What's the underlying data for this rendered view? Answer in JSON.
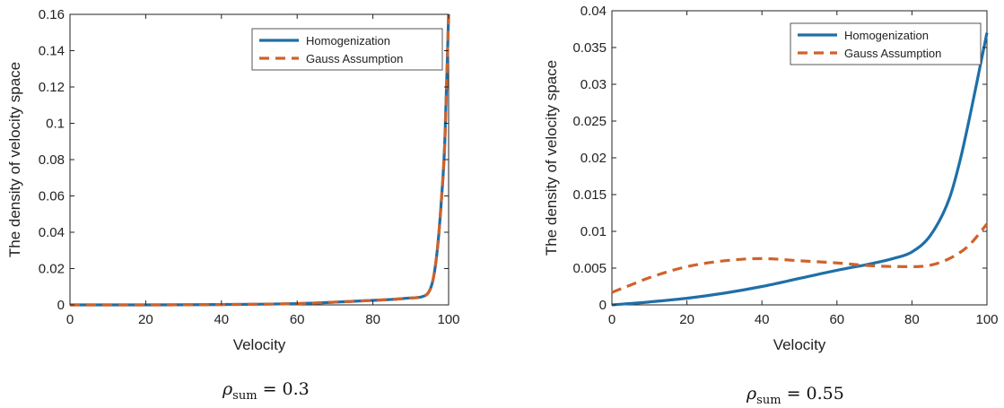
{
  "colors": {
    "homogenization": "#1f6fa8",
    "gauss": "#d0622b",
    "axis": "#222222",
    "legend_border": "#555555"
  },
  "chart_data": [
    {
      "type": "line",
      "xlabel": "Velocity",
      "ylabel": "The density of velocity space",
      "xlim": [
        0,
        100
      ],
      "ylim": [
        0,
        0.16
      ],
      "xticks": [
        0,
        20,
        40,
        60,
        80,
        100
      ],
      "yticks": [
        0,
        0.02,
        0.04,
        0.06,
        0.08,
        0.1,
        0.12,
        0.14,
        0.16
      ],
      "ytick_labels": [
        "0",
        "0.02",
        "0.04",
        "0.06",
        "0.08",
        "0.1",
        "0.12",
        "0.14",
        "0.16"
      ],
      "grid": false,
      "legend": "top-right",
      "caption": {
        "symbol": "ρ",
        "sub": "sum",
        "rest": " = 0.3"
      },
      "series": [
        {
          "name": "Homogenization",
          "style": "solid",
          "x": [
            0,
            20,
            40,
            60,
            70,
            80,
            85,
            90,
            93,
            95,
            96,
            97,
            98,
            99,
            100
          ],
          "y": [
            0,
            0,
            0.0002,
            0.0007,
            0.0015,
            0.0025,
            0.003,
            0.0038,
            0.0045,
            0.008,
            0.015,
            0.03,
            0.055,
            0.09,
            0.16
          ]
        },
        {
          "name": "Gauss Assumption",
          "style": "dashed",
          "x": [
            0,
            20,
            40,
            60,
            70,
            80,
            85,
            90,
            93,
            95,
            96,
            97,
            98,
            99,
            100
          ],
          "y": [
            0,
            0,
            0.0002,
            0.0007,
            0.0015,
            0.0025,
            0.003,
            0.0038,
            0.0045,
            0.008,
            0.015,
            0.03,
            0.055,
            0.09,
            0.16
          ]
        }
      ]
    },
    {
      "type": "line",
      "xlabel": "Velocity",
      "ylabel": "The density of velocity space",
      "xlim": [
        0,
        100
      ],
      "ylim": [
        0,
        0.04
      ],
      "xticks": [
        0,
        20,
        40,
        60,
        80,
        100
      ],
      "yticks": [
        0,
        0.005,
        0.01,
        0.015,
        0.02,
        0.025,
        0.03,
        0.035,
        0.04
      ],
      "ytick_labels": [
        "0",
        "0.005",
        "0.01",
        "0.015",
        "0.02",
        "0.025",
        "0.03",
        "0.035",
        "0.04"
      ],
      "grid": false,
      "legend": "top-right",
      "caption": {
        "symbol": "ρ",
        "sub": "sum",
        "rest": " = 0.55"
      },
      "series": [
        {
          "name": "Homogenization",
          "style": "solid",
          "x": [
            0,
            10,
            20,
            30,
            40,
            50,
            60,
            70,
            75,
            80,
            85,
            90,
            93,
            96,
            98,
            100
          ],
          "y": [
            0,
            0.0004,
            0.0009,
            0.0016,
            0.0025,
            0.0036,
            0.0047,
            0.0057,
            0.0063,
            0.0072,
            0.0095,
            0.0145,
            0.02,
            0.027,
            0.032,
            0.037
          ]
        },
        {
          "name": "Gauss Assumption",
          "style": "dashed",
          "x": [
            0,
            5,
            10,
            20,
            30,
            40,
            50,
            60,
            70,
            80,
            85,
            90,
            95,
            100
          ],
          "y": [
            0.0017,
            0.0027,
            0.0037,
            0.0052,
            0.006,
            0.0063,
            0.006,
            0.0057,
            0.0053,
            0.0052,
            0.0054,
            0.0063,
            0.008,
            0.011
          ]
        }
      ]
    }
  ]
}
